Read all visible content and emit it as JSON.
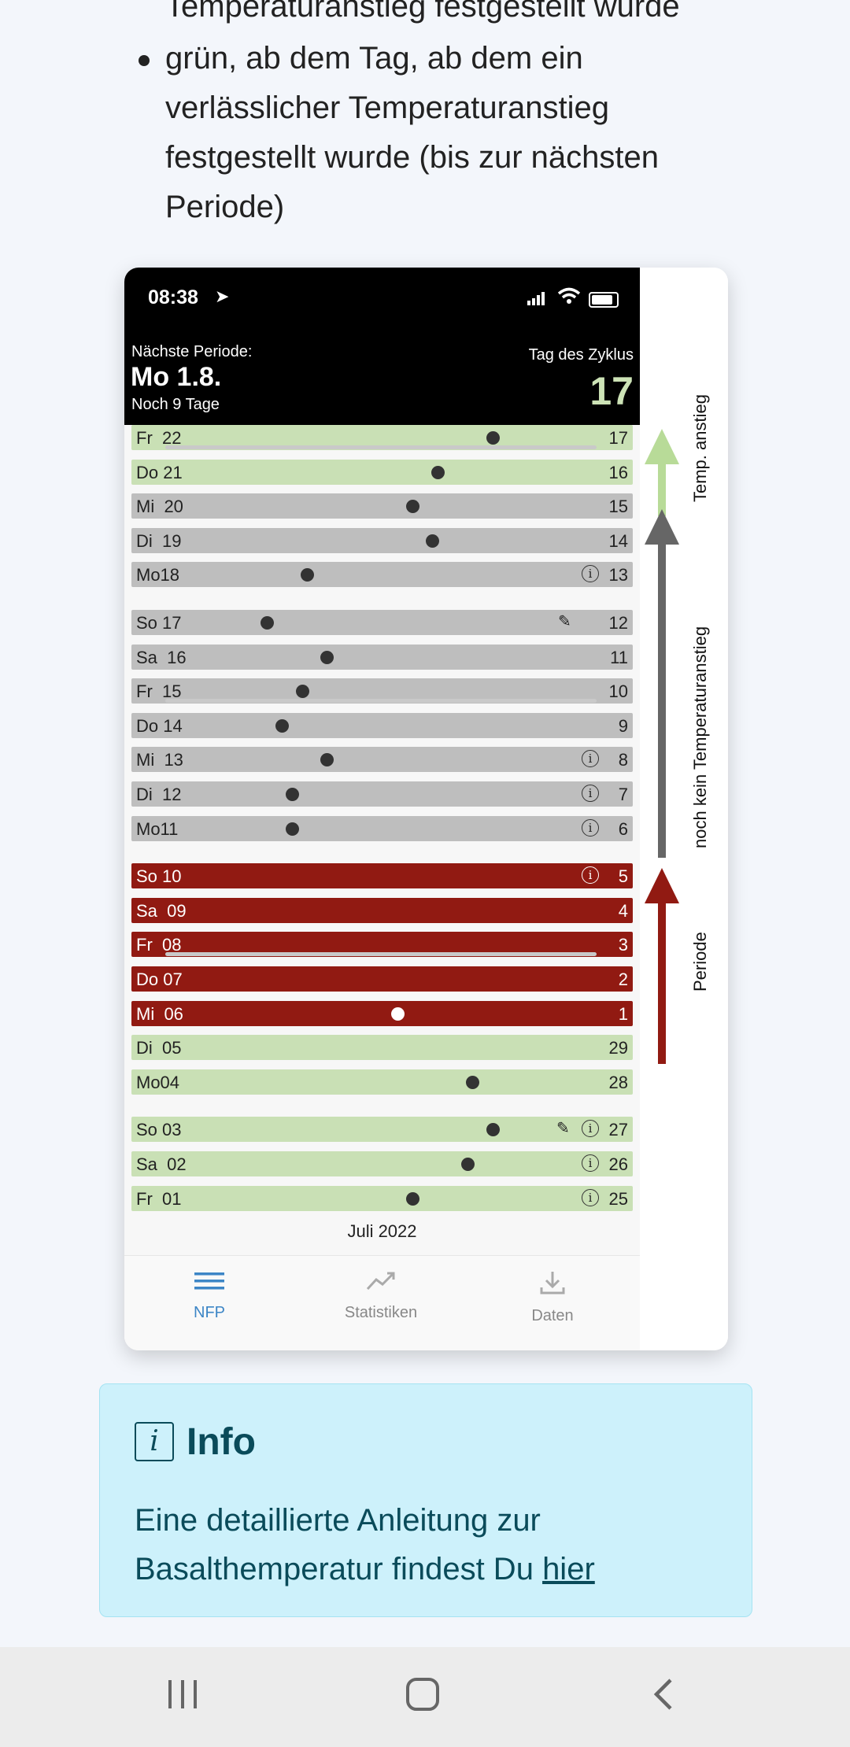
{
  "article": {
    "lines": [
      "Temperaturanstieg festgestellt wurde",
      "grün, ab dem Tag, ab dem ein",
      "verlässlicher Temperaturanstieg",
      "festgestellt wurde (bis zur nächsten",
      "Periode)"
    ]
  },
  "phone": {
    "time": "08:38",
    "next_period_label": "Nächste Periode:",
    "next_period_date": "Mo 1.8.",
    "next_period_remaining": "Noch 9 Tage",
    "cycle_day_label": "Tag des Zyklus",
    "cycle_day_value": "17",
    "month_label": "Juli 2022",
    "rows": [
      {
        "day": "Fr  22",
        "num": "17",
        "color": "green",
        "temp_pos": 0.72
      },
      {
        "day": "Do 21",
        "num": "16",
        "color": "green",
        "temp_pos": 0.61
      },
      {
        "day": "Mi  20",
        "num": "15",
        "color": "grey",
        "temp_pos": 0.56
      },
      {
        "day": "Di  19",
        "num": "14",
        "color": "grey",
        "temp_pos": 0.6
      },
      {
        "day": "Mo18",
        "num": "13",
        "color": "grey",
        "temp_pos": 0.35,
        "info": true
      },
      {
        "day": "So 17",
        "num": "12",
        "color": "grey",
        "temp_pos": 0.27,
        "pen": true
      },
      {
        "day": "Sa  16",
        "num": "11",
        "color": "grey",
        "temp_pos": 0.39
      },
      {
        "day": "Fr  15",
        "num": "10",
        "color": "grey",
        "temp_pos": 0.34
      },
      {
        "day": "Do 14",
        "num": "9",
        "color": "grey",
        "temp_pos": 0.3
      },
      {
        "day": "Mi  13",
        "num": "8",
        "color": "grey",
        "temp_pos": 0.39,
        "info": true
      },
      {
        "day": "Di  12",
        "num": "7",
        "color": "grey",
        "temp_pos": 0.32,
        "info": true
      },
      {
        "day": "Mo11",
        "num": "6",
        "color": "grey",
        "temp_pos": 0.32,
        "info": true
      },
      {
        "day": "So 10",
        "num": "5",
        "color": "red",
        "info": true
      },
      {
        "day": "Sa  09",
        "num": "4",
        "color": "red"
      },
      {
        "day": "Fr  08",
        "num": "3",
        "color": "red"
      },
      {
        "day": "Do 07",
        "num": "2",
        "color": "red"
      },
      {
        "day": "Mi  06",
        "num": "1",
        "color": "red",
        "temp_pos": 0.53
      },
      {
        "day": "Di  05",
        "num": "29",
        "color": "green"
      },
      {
        "day": "Mo04",
        "num": "28",
        "color": "green",
        "temp_pos": 0.68
      },
      {
        "day": "So 03",
        "num": "27",
        "color": "green",
        "temp_pos": 0.72,
        "info": true,
        "pen": true
      },
      {
        "day": "Sa  02",
        "num": "26",
        "color": "green",
        "temp_pos": 0.67,
        "info": true
      },
      {
        "day": "Fr  01",
        "num": "25",
        "color": "green",
        "temp_pos": 0.56,
        "info": true
      }
    ],
    "tabs": [
      {
        "label": "NFP",
        "icon": "menu-icon",
        "active": true
      },
      {
        "label": "Statistiken",
        "icon": "trend-icon",
        "active": false
      },
      {
        "label": "Daten",
        "icon": "download-icon",
        "active": false
      }
    ]
  },
  "side_labels": {
    "temp_rise": "Temp. anstieg",
    "no_rise": "noch kein Temperaturanstieg",
    "period": "Periode"
  },
  "colors": {
    "green": "#c9e0b5",
    "arrow_green": "#b8db98",
    "grey": "#bebebe",
    "arrow_grey": "#666666",
    "red": "#911a12"
  },
  "info": {
    "title": "Info",
    "body": "Eine detaillierte Anleitung zur Basalthemperatur findest Du",
    "link": "hier"
  }
}
